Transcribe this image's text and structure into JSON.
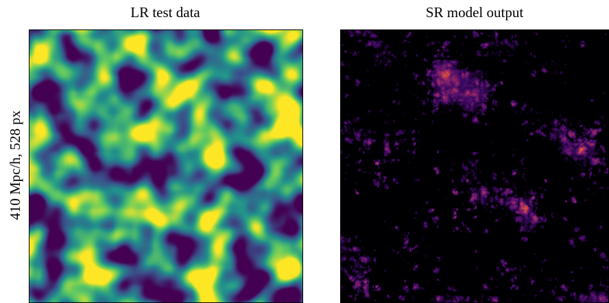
{
  "panels": [
    {
      "title": "LR test data"
    },
    {
      "title": "SR model output"
    }
  ],
  "ylabel": "410 Mpc/h, 528 px"
}
